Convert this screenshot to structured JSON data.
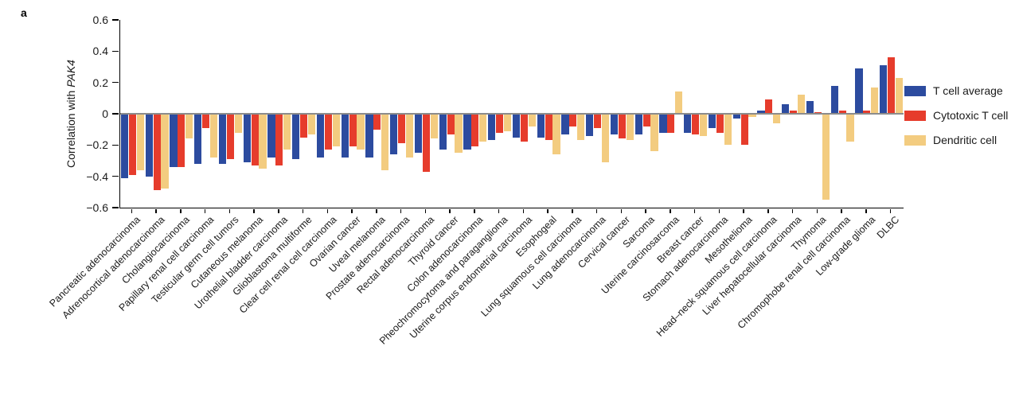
{
  "panel_label": "a",
  "y_axis": {
    "title_prefix": "Correlation with ",
    "title_gene": "PAK4",
    "ticks": [
      {
        "label": "0.6",
        "value": 0.6
      },
      {
        "label": "0.4",
        "value": 0.4
      },
      {
        "label": "0.2",
        "value": 0.2
      },
      {
        "label": "0",
        "value": 0.0
      },
      {
        "label": "−0.2",
        "value": -0.2
      },
      {
        "label": "−0.4",
        "value": -0.4
      },
      {
        "label": "−0.6",
        "value": -0.6
      }
    ]
  },
  "colors": {
    "zero_line": "#8c8c8c",
    "axis": "#000000"
  },
  "chart_data": {
    "type": "bar",
    "title": "",
    "xlabel": "",
    "ylabel": "Correlation with PAK4",
    "ylim": [
      -0.6,
      0.6
    ],
    "grid": false,
    "legend_position": "right",
    "categories": [
      "Pancreatic adenocarcinoma",
      "Adrenocortical adenocarcinoma",
      "Cholangiocarcinoma",
      "Papillary renal cell carcinoma",
      "Testicular germ cell tumors",
      "Cutaneous melanoma",
      "Urothelial bladder carcinoma",
      "Glioblastoma multiforme",
      "Clear cell renal cell carcinoma",
      "Ovarian cancer",
      "Uveal melanoma",
      "Prostate adenocarcinoma",
      "Rectal adenocarcinoma",
      "Thyroid cancer",
      "Colon adenocarcinoma",
      "Pheochromocytoma and paraganglioma",
      "Uterine corpus endometrial carcinoma",
      "Esophogeal",
      "Lung squamous cell carcinoma",
      "Lung adenocarcinoma",
      "Cervical cancer",
      "Sarcoma",
      "Uterine carcinosarcoma",
      "Breast cancer",
      "Stomach adenocarcinoma",
      "Mesothelioma",
      "Head–neck squamous cell carcinoma",
      "Liver hepatocellular carcinoma",
      "Thymoma",
      "Chromophobe renal cell carcinoma",
      "Low-grade glioma",
      "DLBC"
    ],
    "series": [
      {
        "name": "T cell average",
        "color": "#2c4b9f",
        "values": [
          -0.41,
          -0.4,
          -0.34,
          -0.32,
          -0.32,
          -0.31,
          -0.28,
          -0.29,
          -0.28,
          -0.28,
          -0.28,
          -0.26,
          -0.25,
          -0.23,
          -0.23,
          -0.17,
          -0.15,
          -0.15,
          -0.13,
          -0.14,
          -0.13,
          -0.13,
          -0.12,
          -0.12,
          -0.09,
          -0.03,
          0.02,
          0.06,
          0.08,
          0.18,
          0.29,
          0.31
        ]
      },
      {
        "name": "Cytotoxic T cell",
        "color": "#e63c2c",
        "values": [
          -0.39,
          -0.49,
          -0.34,
          -0.09,
          -0.29,
          -0.33,
          -0.33,
          -0.15,
          -0.23,
          -0.21,
          -0.1,
          -0.19,
          -0.37,
          -0.13,
          -0.21,
          -0.12,
          -0.18,
          -0.17,
          -0.08,
          -0.09,
          -0.16,
          -0.08,
          -0.12,
          -0.13,
          -0.12,
          -0.2,
          0.09,
          0.02,
          0.01,
          0.02,
          0.02,
          0.36
        ]
      },
      {
        "name": "Dendritic cell",
        "color": "#f3cc80",
        "values": [
          -0.36,
          -0.48,
          -0.16,
          -0.28,
          -0.12,
          -0.35,
          -0.23,
          -0.13,
          -0.21,
          -0.23,
          -0.36,
          -0.28,
          -0.16,
          -0.25,
          -0.18,
          -0.11,
          -0.08,
          -0.26,
          -0.17,
          -0.31,
          -0.17,
          -0.24,
          0.14,
          -0.14,
          -0.2,
          -0.02,
          -0.06,
          0.12,
          -0.55,
          -0.18,
          0.17,
          0.23
        ]
      }
    ]
  }
}
